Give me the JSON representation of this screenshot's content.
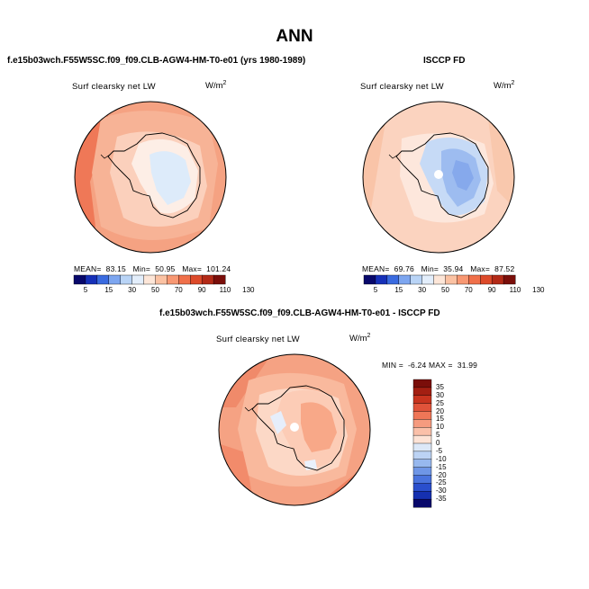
{
  "page": {
    "title": "ANN"
  },
  "chart_data": [
    {
      "type": "heatmap",
      "projection": "south polar stereographic",
      "title": "f.e15b03wch.F55W5SC.f09_f09.CLB-AGW4-HM-T0-e01 (yrs 1980-1989)",
      "field_label": "Surf clearsky net LW",
      "units": "W/m",
      "units_exp": "2",
      "stats": {
        "mean_label": "MEAN=",
        "mean": "83.15",
        "min_label": "Min=",
        "min": "50.95",
        "max_label": "Max=",
        "max": "101.24"
      },
      "colorbar": {
        "levels": [
          "5",
          "15",
          "30",
          "50",
          "70",
          "90",
          "110",
          "130"
        ],
        "colors": [
          "#08086b",
          "#1630b8",
          "#3a6be0",
          "#7da6f0",
          "#b9d4f6",
          "#e3eefb",
          "#fde6d8",
          "#fbc2a3",
          "#f89873",
          "#f0704a",
          "#dd4a2a",
          "#b32a17",
          "#7a0e0a"
        ]
      }
    },
    {
      "type": "heatmap",
      "projection": "south polar stereographic",
      "title": "ISCCP FD",
      "field_label": "Surf clearsky net LW",
      "units": "W/m",
      "units_exp": "2",
      "stats": {
        "mean_label": "MEAN=",
        "mean": "69.76",
        "min_label": "Min=",
        "min": "35.94",
        "max_label": "Max=",
        "max": "87.52"
      },
      "colorbar": {
        "levels": [
          "5",
          "15",
          "30",
          "50",
          "70",
          "90",
          "110",
          "130"
        ],
        "colors": [
          "#08086b",
          "#1630b8",
          "#3a6be0",
          "#7da6f0",
          "#b9d4f6",
          "#e3eefb",
          "#fde6d8",
          "#fbc2a3",
          "#f89873",
          "#f0704a",
          "#dd4a2a",
          "#b32a17",
          "#7a0e0a"
        ]
      }
    },
    {
      "type": "heatmap",
      "projection": "south polar stereographic",
      "title": "f.e15b03wch.F55W5SC.f09_f09.CLB-AGW4-HM-T0-e01 - ISCCP FD",
      "field_label": "Surf clearsky net LW",
      "units": "W/m",
      "units_exp": "2",
      "stats": {
        "min_label": "MIN =",
        "min": "-6.24",
        "max_label": "MAX =",
        "max": "31.99"
      },
      "colorbar": {
        "levels": [
          "35",
          "30",
          "25",
          "20",
          "15",
          "10",
          "5",
          "0",
          "-5",
          "-10",
          "-15",
          "-20",
          "-25",
          "-30",
          "-35"
        ],
        "colors": [
          "#7a0e0a",
          "#a31f12",
          "#c8341f",
          "#e0533a",
          "#ef7657",
          "#f59b7f",
          "#fac0a9",
          "#fde3d6",
          "#dce8f8",
          "#bcd3f4",
          "#97b8ee",
          "#6f96e6",
          "#4a73dd",
          "#2a4fcd",
          "#1530b0",
          "#08086b"
        ]
      }
    }
  ]
}
